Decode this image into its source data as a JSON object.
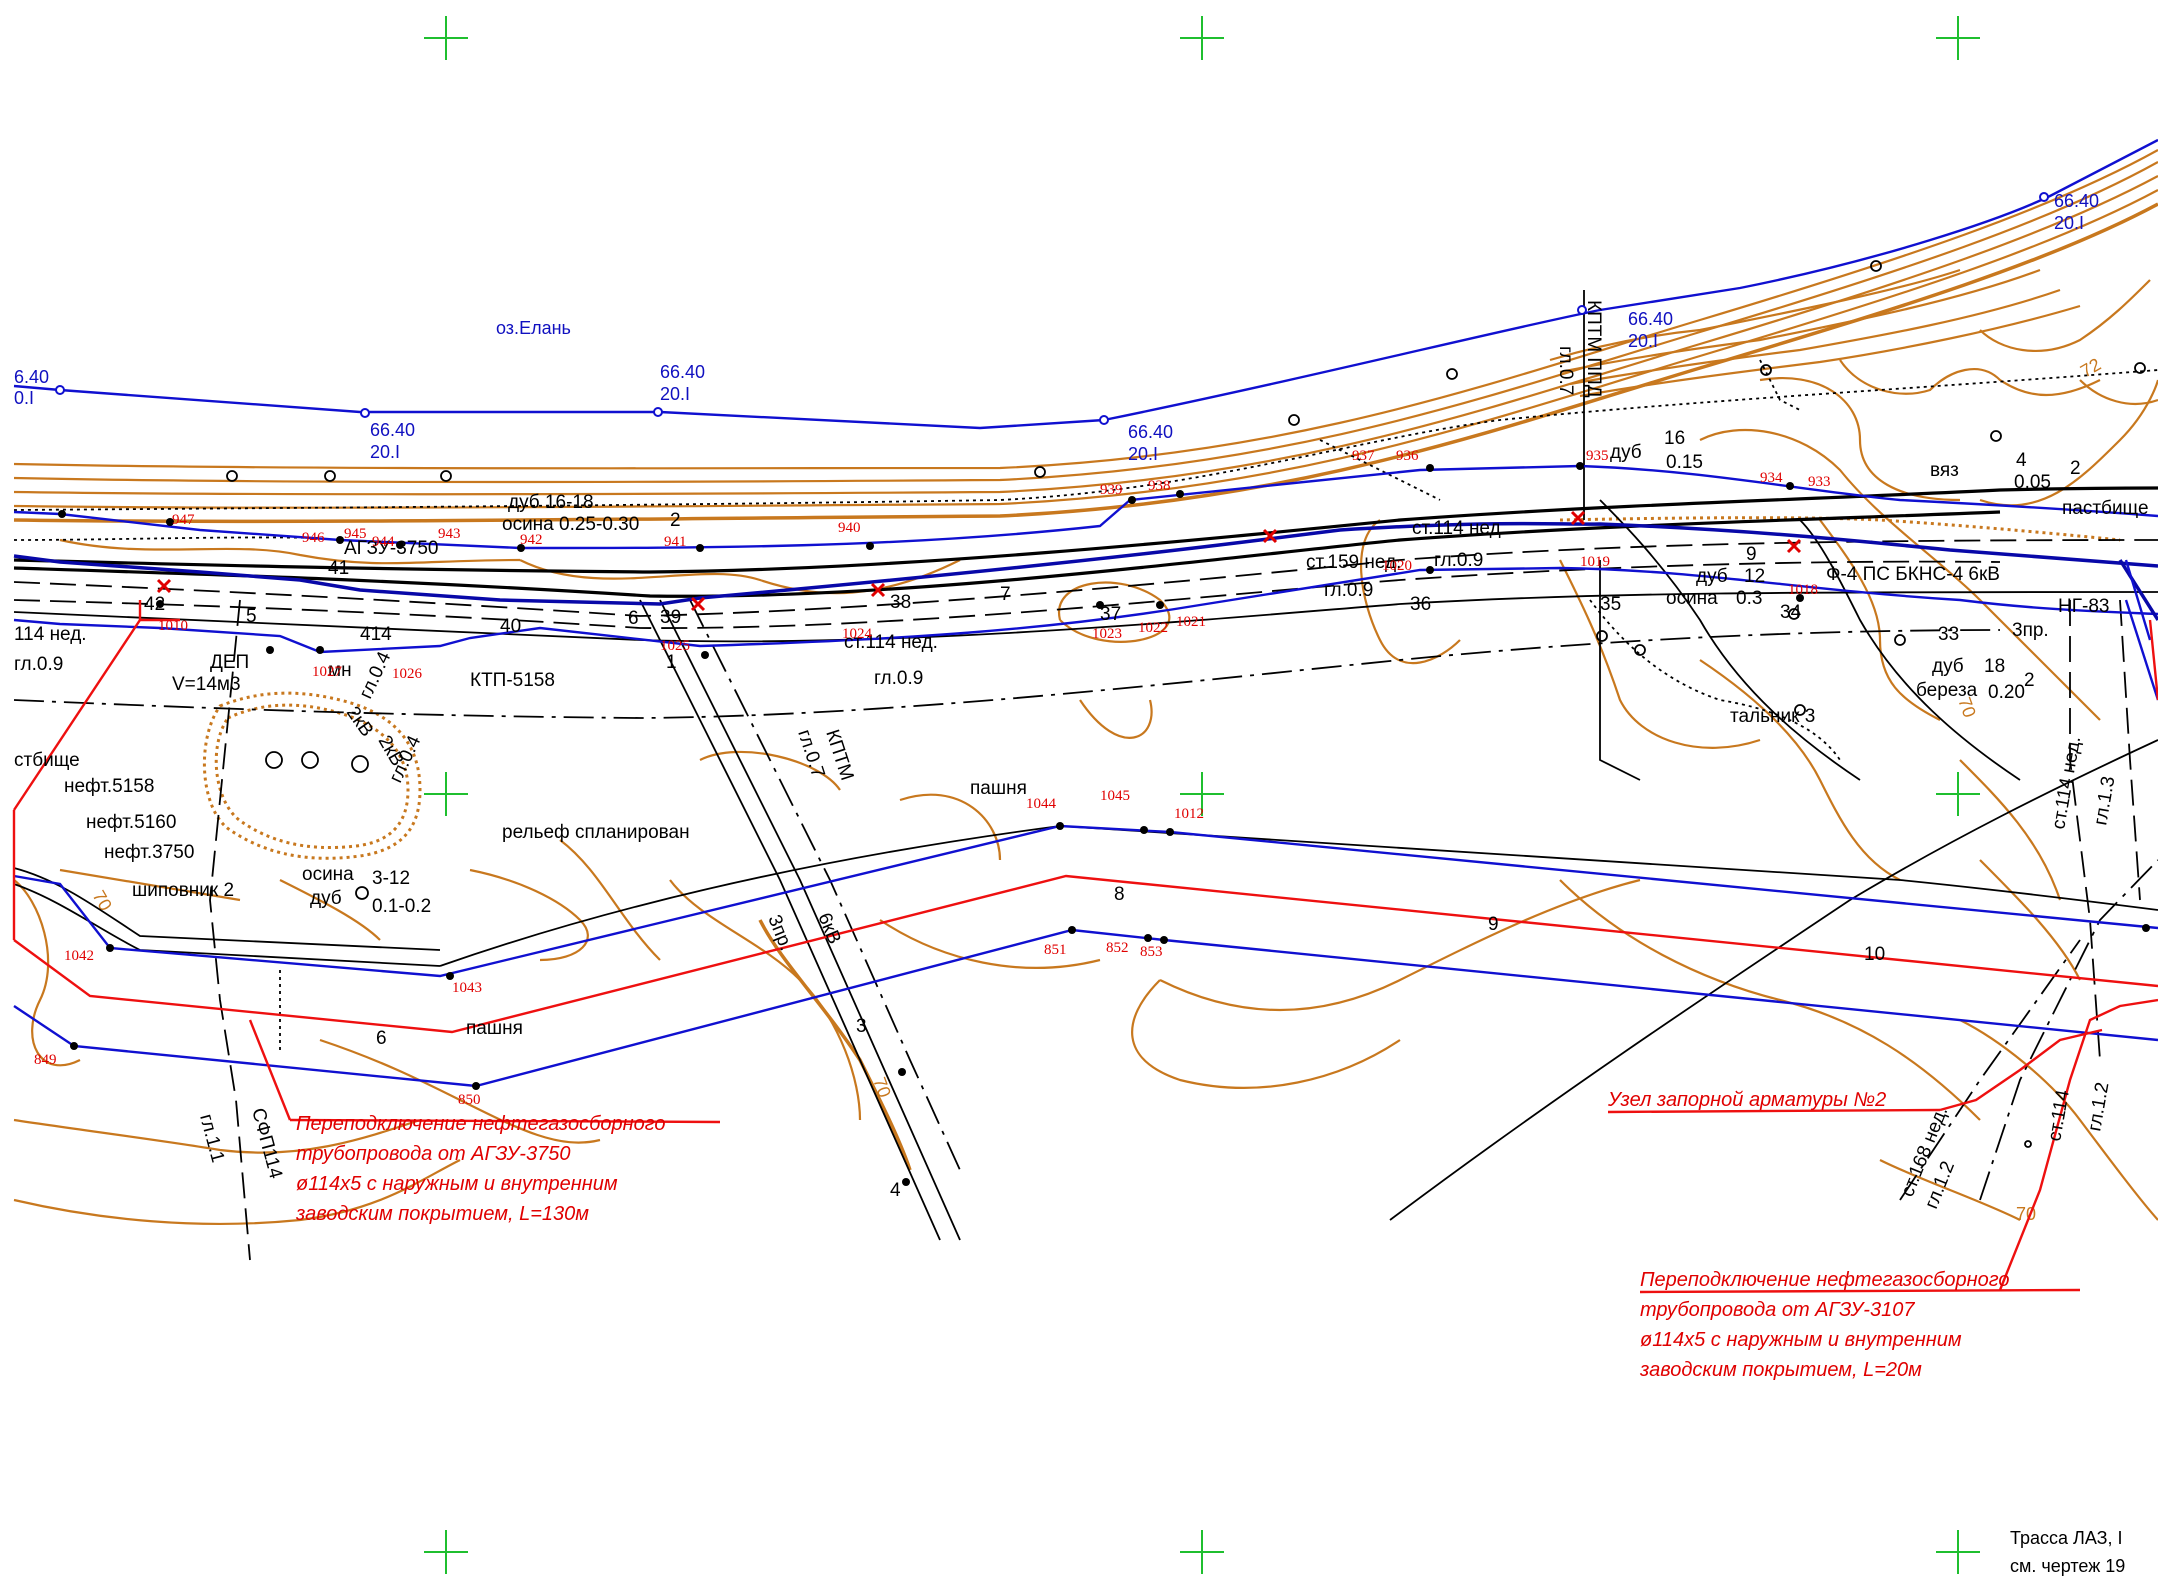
{
  "drawing": {
    "lake_name": "оз.Елань",
    "water_level_marks": [
      {
        "top": "6.40",
        "bottom": "0.I"
      },
      {
        "top": "66.40",
        "bottom": "20.I"
      },
      {
        "top": "66.40",
        "bottom": "20.I"
      },
      {
        "top": "66.40",
        "bottom": "20.I"
      },
      {
        "top": "66.40",
        "bottom": "20.I"
      },
      {
        "top": "66.40",
        "bottom": "20.I"
      }
    ],
    "black_labels": {
      "oak_aspen": "дуб 16-18",
      "aspen_range": "осина 0.25-0.30",
      "n2": "2",
      "agzu": "АГЗУ-3750",
      "n42": "42",
      "n5": "5",
      "n39": "39",
      "n40": "40",
      "n41": "41",
      "n6": "6",
      "n1": "1",
      "n38": "38",
      "n37": "37",
      "n36": "36",
      "n35": "35",
      "n34": "34",
      "n33": "33",
      "n7": "7",
      "ned114_left": "114 нед.",
      "gl09_left": "гл.0.9",
      "dep": "ДЕП",
      "volume": "V=14м3",
      "mn": "мн",
      "n414": "414",
      "ktp": "КТП-5158",
      "kv2a": "2кВ",
      "gl04a": "гл.0.4",
      "kv2b": "2кВ",
      "gl04b": "гл.0.4",
      "pasture_left": "стбище",
      "neft5158": "нефт.5158",
      "neft5160": "нефт.5160",
      "neft3750": "нефт.3750",
      "rosehip": "шиповник 2",
      "aspen2": "осина",
      "oak2": "дуб",
      "oak2_range": "3-12",
      "oak2_thick": "0.1-0.2",
      "relief": "рельеф спланирован",
      "ned114_mid": "ст.114 нед.",
      "gl09_mid": "гл.0.9",
      "kptm": "КПТМ",
      "gl07": "гл.0.7",
      "spr3": "3пр.",
      "kv6": "6кВ",
      "n3": "3",
      "n4": "4",
      "field1": "пашня",
      "field2": "пашня",
      "sfp": "СФП114",
      "gl11": "гл.1.1",
      "n8": "8",
      "n9": "9",
      "n10": "10",
      "n6b": "6",
      "st159": "ст.159 нед.",
      "st114": "ст.114 нед.",
      "gl09_right": "гл.0.9",
      "gl09_right2": "гл.0.9",
      "kptmppd": "КПТМ ППД",
      "gl07_right": "гл.0.7",
      "oak3": "дуб",
      "oak3_n": "16",
      "oak3_t": "0.15",
      "oak4": "дуб",
      "oak4_n": "12",
      "aspen4": "осина",
      "aspen4_t": "0.3",
      "elm": "вяз",
      "elm_n": "4",
      "elm_t": "0.05",
      "elm_2": "2",
      "pasture_right": "пастбище",
      "f4": "Ф-4 ПС БКНС-4 6кВ",
      "ng": "НГ-83",
      "spr3b": "3пр.",
      "oak5": "дуб",
      "oak5_n": "18",
      "birch": "береза",
      "birch_t": "0.20",
      "birch_2": "2",
      "willow": "тальник 3",
      "st114_right": "ст.114 нед.",
      "gl13": "гл.1.3",
      "st168": "ст.168 нед.",
      "gl12a": "гл.1.2",
      "st114b": "ст.114",
      "gl12b": "гл.1.2",
      "n9b": "9"
    },
    "red_points": [
      "947",
      "946",
      "945",
      "944",
      "943",
      "942",
      "941",
      "940",
      "939",
      "938",
      "937",
      "936",
      "935",
      "934",
      "933",
      "1010",
      "1027",
      "1026",
      "1025",
      "1024",
      "1023",
      "1022",
      "1021",
      "1020",
      "1019",
      "1018",
      "1044",
      "1045",
      "1012",
      "1042",
      "1043",
      "849",
      "850",
      "851",
      "852",
      "853"
    ],
    "contour_labels": [
      "70",
      "70",
      "70",
      "72"
    ],
    "notes": [
      {
        "lines": [
          "Переподключение нефтегазосборного",
          "трубопровода от АГЗУ-3750",
          "ø114х5 с наружным и внутренним",
          "заводским покрытием, L=130м"
        ]
      },
      {
        "lines": [
          "Переподключение нефтегазосборного",
          "трубопровода от АГЗУ-3107",
          "ø114х5 с наружным и внутренним",
          "заводским покрытием, L=20м"
        ]
      }
    ],
    "valve_node": "Узел запорной арматуры №2",
    "title_block": [
      "Трасса ЛАЗ, I",
      "см. чертеж 19"
    ],
    "colors": {
      "contour": "#c8781e",
      "pipeline": "#1010d0",
      "route": "#ee1010",
      "registration_mark": "#1fbf2f"
    }
  }
}
